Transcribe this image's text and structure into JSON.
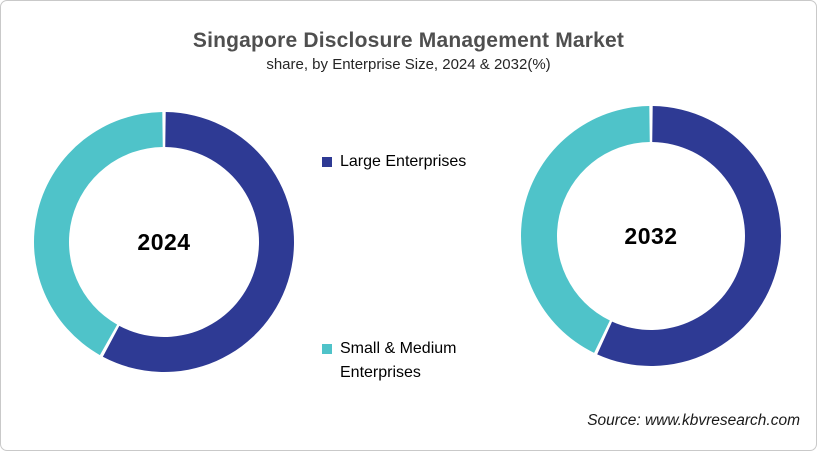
{
  "header": {
    "title": "Singapore Disclosure Management Market",
    "subtitle": "share, by Enterprise Size, 2024 & 2032(%)"
  },
  "colors": {
    "large_enterprises": "#2e3a94",
    "small_medium_enterprises": "#4fc3c9",
    "title_gray": "#4f4f4f",
    "card_border": "#c9c9c9"
  },
  "chart_data": [
    {
      "type": "pie",
      "subtype": "donut",
      "center_label": "2024",
      "unit": "%",
      "legend_position": "center-between-charts",
      "slices": [
        {
          "label": "Large Enterprises",
          "value": 58,
          "color": "#2e3a94"
        },
        {
          "label": "Small & Medium Enterprises",
          "value": 42,
          "color": "#4fc3c9"
        }
      ]
    },
    {
      "type": "pie",
      "subtype": "donut",
      "center_label": "2032",
      "unit": "%",
      "legend_position": "center-between-charts",
      "slices": [
        {
          "label": "Large Enterprises",
          "value": 57,
          "color": "#2e3a94"
        },
        {
          "label": "Small & Medium Enterprises",
          "value": 43,
          "color": "#4fc3c9"
        }
      ]
    }
  ],
  "legend": {
    "items": [
      {
        "label": "Large Enterprises",
        "color": "#2e3a94"
      },
      {
        "label": "Small & Medium Enterprises",
        "color": "#4fc3c9"
      }
    ]
  },
  "footer": {
    "source": "Source: www.kbvresearch.com"
  }
}
